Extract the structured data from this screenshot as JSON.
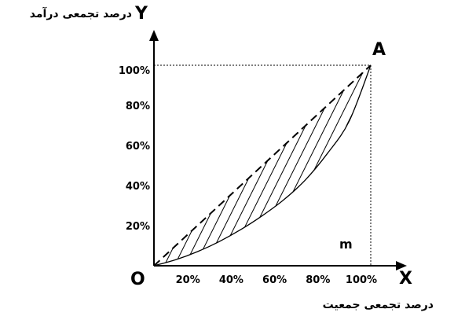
{
  "chart_data": {
    "type": "line",
    "y_axis_title": "درصد تجمعی درآمد",
    "x_axis_title": "درصد تجمعی جمعیت",
    "axis_letters": {
      "x": "X",
      "y": "Y"
    },
    "origin_label": "O",
    "point_a_label": "A",
    "area_label": "m",
    "x_ticks": [
      "20%",
      "40%",
      "60%",
      "80%",
      "100%"
    ],
    "y_ticks": [
      "20%",
      "40%",
      "60%",
      "80%",
      "100%"
    ],
    "xlim": [
      0,
      100
    ],
    "ylim": [
      0,
      100
    ],
    "series": [
      {
        "style": "dashed",
        "x": [
          0,
          20,
          40,
          60,
          80,
          100
        ],
        "y": [
          0,
          20,
          40,
          60,
          80,
          100
        ]
      },
      {
        "style": "solid",
        "x": [
          0,
          10,
          20,
          30,
          40,
          50,
          60,
          70,
          80,
          90,
          100
        ],
        "y": [
          0,
          3,
          7,
          12,
          18,
          25,
          33,
          43,
          56,
          72,
          100
        ]
      }
    ],
    "shaded_region": "between dashed equality line and solid Lorenz curve (hatched)",
    "reference_lines": [
      "dotted horizontal at y=100",
      "dotted vertical at x=100"
    ]
  }
}
